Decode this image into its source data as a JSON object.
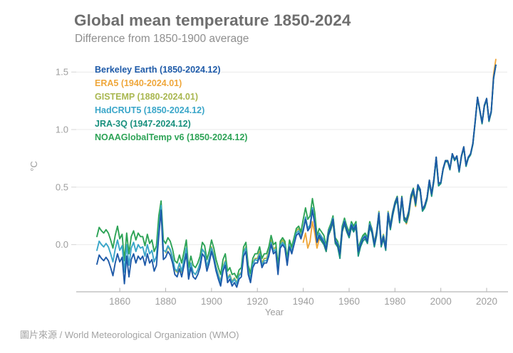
{
  "footer": {
    "source": "圖片來源 / World Meteorological Organization (WMO)"
  },
  "colors": {
    "grid": "#e9e9e9",
    "axis_line": "#b6b6b6",
    "tick": "#b6b6b6",
    "axis_text": "#9e9e9e",
    "title_text": "#6e6e6e",
    "subtitle_text": "#8e8e8e",
    "caption_text": "#a3a3a3"
  },
  "chart_data": {
    "type": "line",
    "title": "Global mean temperature 1850-2024",
    "subtitle": "Difference from 1850-1900 average",
    "xlabel": "Year",
    "ylabel": "°C",
    "grid": "horizontal",
    "legend_position": "top-left-inside",
    "xlim": [
      1841,
      2029
    ],
    "ylim": [
      -0.41,
      1.6
    ],
    "x_ticks": [
      1860,
      1880,
      1900,
      1920,
      1940,
      1960,
      1980,
      2000,
      2020
    ],
    "y_ticks": [
      {
        "value": 0.0,
        "label": "0.0"
      },
      {
        "value": 0.5,
        "label": "0.5"
      },
      {
        "value": 1.0,
        "label": "1.0"
      },
      {
        "value": 1.5,
        "label": "1.5"
      }
    ],
    "series": [
      {
        "id": "berkeley-earth",
        "name": "Berkeley Earth",
        "legend_label": "Berkeley Earth (1850-2024.12)",
        "color": "#1e5aa8",
        "start_year": 1850,
        "end_year": 2024,
        "values": [
          -0.17,
          -0.09,
          -0.12,
          -0.14,
          -0.11,
          -0.14,
          -0.2,
          -0.27,
          -0.16,
          -0.08,
          -0.15,
          -0.11,
          -0.34,
          -0.1,
          -0.28,
          -0.13,
          -0.08,
          -0.16,
          -0.1,
          -0.13,
          -0.1,
          -0.18,
          -0.08,
          -0.16,
          -0.13,
          -0.23,
          -0.18,
          0.08,
          0.3,
          -0.13,
          -0.11,
          -0.06,
          -0.09,
          -0.16,
          -0.26,
          -0.28,
          -0.21,
          -0.28,
          -0.18,
          -0.08,
          -0.3,
          -0.2,
          -0.28,
          -0.3,
          -0.26,
          -0.2,
          -0.08,
          -0.11,
          -0.23,
          -0.16,
          -0.06,
          -0.13,
          -0.23,
          -0.3,
          -0.36,
          -0.23,
          -0.18,
          -0.33,
          -0.3,
          -0.36,
          -0.33,
          -0.37,
          -0.3,
          -0.28,
          -0.1,
          -0.06,
          -0.26,
          -0.33,
          -0.2,
          -0.16,
          -0.16,
          -0.1,
          -0.2,
          -0.16,
          -0.16,
          -0.1,
          0.0,
          -0.08,
          -0.06,
          -0.26,
          -0.03,
          0.0,
          -0.03,
          -0.18,
          -0.02,
          -0.08,
          0.0,
          0.08,
          0.1,
          0.05,
          0.12,
          0.22,
          0.12,
          0.15,
          0.3,
          0.18,
          0.02,
          0.08,
          0.05,
          0.02,
          -0.04,
          0.1,
          0.15,
          0.22,
          0.03,
          0.0,
          -0.08,
          0.13,
          0.2,
          0.13,
          0.08,
          0.17,
          0.13,
          0.17,
          -0.06,
          0.0,
          0.05,
          0.07,
          0.03,
          0.17,
          0.12,
          0.0,
          0.1,
          0.27,
          0.0,
          0.07,
          -0.03,
          0.27,
          0.15,
          0.27,
          0.36,
          0.41,
          0.21,
          0.41,
          0.23,
          0.21,
          0.28,
          0.42,
          0.48,
          0.36,
          0.52,
          0.48,
          0.31,
          0.34,
          0.41,
          0.56,
          0.44,
          0.57,
          0.76,
          0.53,
          0.54,
          0.66,
          0.73,
          0.73,
          0.66,
          0.79,
          0.74,
          0.77,
          0.64,
          0.77,
          0.85,
          0.69,
          0.76,
          0.79,
          0.88,
          1.07,
          1.28,
          1.17,
          1.06,
          1.21,
          1.27,
          1.08,
          1.16,
          1.45,
          1.56
        ]
      },
      {
        "id": "era5",
        "name": "ERA5",
        "legend_label": "ERA5 (1940-2024.01)",
        "color": "#efa73b",
        "start_year": 1940,
        "end_year": 2024,
        "values": [
          0.02,
          0.1,
          -0.03,
          0.03,
          0.2,
          0.1,
          -0.03,
          0.05,
          0.03,
          0.0,
          -0.06,
          0.08,
          0.13,
          0.2,
          0.01,
          -0.02,
          -0.1,
          0.11,
          0.18,
          0.11,
          0.08,
          0.17,
          0.13,
          0.17,
          -0.06,
          0.0,
          0.05,
          0.07,
          0.03,
          0.17,
          0.12,
          0.0,
          0.1,
          0.27,
          0.0,
          0.07,
          -0.03,
          0.27,
          0.15,
          0.27,
          0.36,
          0.41,
          0.21,
          0.41,
          0.23,
          0.18,
          0.25,
          0.39,
          0.45,
          0.33,
          0.49,
          0.48,
          0.31,
          0.34,
          0.41,
          0.56,
          0.44,
          0.57,
          0.76,
          0.53,
          0.54,
          0.66,
          0.73,
          0.73,
          0.66,
          0.79,
          0.74,
          0.77,
          0.64,
          0.77,
          0.85,
          0.69,
          0.76,
          0.79,
          0.88,
          1.07,
          1.28,
          1.17,
          1.06,
          1.21,
          1.27,
          1.08,
          1.16,
          1.48,
          1.61
        ]
      },
      {
        "id": "gistemp",
        "name": "GISTEMP",
        "legend_label": "GISTEMP (1880-2024.01)",
        "color": "#a9b750",
        "start_year": 1880,
        "end_year": 2024,
        "values": [
          -0.07,
          -0.02,
          -0.05,
          -0.12,
          -0.22,
          -0.24,
          -0.17,
          -0.24,
          -0.14,
          -0.04,
          -0.26,
          -0.16,
          -0.24,
          -0.26,
          -0.22,
          -0.16,
          -0.04,
          -0.07,
          -0.19,
          -0.12,
          -0.02,
          -0.09,
          -0.19,
          -0.26,
          -0.32,
          -0.19,
          -0.14,
          -0.29,
          -0.26,
          -0.32,
          -0.29,
          -0.33,
          -0.26,
          -0.24,
          -0.06,
          -0.02,
          -0.22,
          -0.29,
          -0.16,
          -0.12,
          -0.12,
          -0.06,
          -0.16,
          -0.12,
          -0.12,
          -0.06,
          0.04,
          -0.04,
          -0.02,
          -0.22,
          0.01,
          0.04,
          0.01,
          -0.14,
          0.02,
          -0.04,
          0.04,
          0.12,
          0.14,
          0.09,
          0.14,
          0.24,
          0.14,
          0.17,
          0.32,
          0.2,
          0.04,
          0.1,
          0.07,
          0.04,
          -0.02,
          0.12,
          0.17,
          0.24,
          0.05,
          0.02,
          -0.06,
          0.15,
          0.22,
          0.15,
          0.1,
          0.19,
          0.15,
          0.19,
          -0.04,
          0.02,
          0.07,
          0.09,
          0.05,
          0.19,
          0.14,
          0.02,
          0.12,
          0.29,
          0.02,
          0.09,
          -0.01,
          0.29,
          0.17,
          0.29,
          0.36,
          0.41,
          0.21,
          0.41,
          0.23,
          0.21,
          0.28,
          0.42,
          0.48,
          0.36,
          0.52,
          0.48,
          0.31,
          0.34,
          0.41,
          0.56,
          0.44,
          0.57,
          0.76,
          0.53,
          0.54,
          0.66,
          0.73,
          0.73,
          0.66,
          0.79,
          0.74,
          0.77,
          0.64,
          0.77,
          0.85,
          0.69,
          0.76,
          0.79,
          0.88,
          1.07,
          1.28,
          1.17,
          1.06,
          1.21,
          1.27,
          1.08,
          1.16,
          1.45,
          1.56
        ]
      },
      {
        "id": "hadcrut5",
        "name": "HadCRUT5",
        "legend_label": "HadCRUT5 (1850-2024.12)",
        "color": "#3aa6c9",
        "start_year": 1850,
        "end_year": 2024,
        "values": [
          -0.05,
          0.03,
          0.0,
          -0.02,
          0.01,
          -0.02,
          -0.08,
          -0.15,
          -0.04,
          0.04,
          -0.05,
          -0.01,
          -0.24,
          0.0,
          -0.18,
          -0.03,
          0.02,
          -0.06,
          0.0,
          -0.03,
          -0.02,
          -0.1,
          0.0,
          -0.08,
          -0.05,
          -0.15,
          -0.1,
          0.14,
          0.34,
          -0.05,
          -0.06,
          -0.01,
          -0.04,
          -0.11,
          -0.21,
          -0.23,
          -0.16,
          -0.23,
          -0.13,
          -0.03,
          -0.26,
          -0.16,
          -0.24,
          -0.26,
          -0.22,
          -0.16,
          -0.04,
          -0.07,
          -0.19,
          -0.12,
          -0.03,
          -0.1,
          -0.2,
          -0.27,
          -0.33,
          -0.2,
          -0.15,
          -0.3,
          -0.27,
          -0.33,
          -0.3,
          -0.34,
          -0.27,
          -0.25,
          -0.07,
          -0.03,
          -0.23,
          -0.3,
          -0.17,
          -0.13,
          -0.14,
          -0.08,
          -0.18,
          -0.14,
          -0.14,
          -0.08,
          0.02,
          -0.06,
          -0.04,
          -0.24,
          -0.01,
          0.02,
          -0.01,
          -0.16,
          0.0,
          -0.06,
          0.02,
          0.1,
          0.12,
          0.07,
          0.14,
          0.24,
          0.14,
          0.17,
          0.32,
          0.2,
          0.04,
          0.1,
          0.07,
          0.04,
          -0.03,
          0.11,
          0.16,
          0.23,
          0.04,
          0.01,
          -0.07,
          0.14,
          0.21,
          0.14,
          0.09,
          0.18,
          0.14,
          0.18,
          -0.05,
          0.01,
          0.06,
          0.08,
          0.04,
          0.18,
          0.13,
          0.01,
          0.11,
          0.28,
          0.01,
          0.08,
          -0.02,
          0.28,
          0.16,
          0.28,
          0.36,
          0.41,
          0.21,
          0.41,
          0.23,
          0.21,
          0.28,
          0.42,
          0.48,
          0.36,
          0.52,
          0.48,
          0.31,
          0.34,
          0.41,
          0.56,
          0.44,
          0.57,
          0.76,
          0.53,
          0.54,
          0.66,
          0.73,
          0.73,
          0.66,
          0.79,
          0.74,
          0.77,
          0.64,
          0.77,
          0.85,
          0.69,
          0.76,
          0.79,
          0.88,
          1.07,
          1.28,
          1.17,
          1.06,
          1.21,
          1.27,
          1.08,
          1.16,
          1.45,
          1.56
        ]
      },
      {
        "id": "jra-3q",
        "name": "JRA-3Q",
        "legend_label": "JRA-3Q (1947-2024.12)",
        "color": "#18907d",
        "start_year": 1947,
        "end_year": 2024,
        "values": [
          0.06,
          0.03,
          0.0,
          -0.06,
          0.08,
          0.13,
          0.2,
          0.01,
          -0.02,
          -0.12,
          0.11,
          0.18,
          0.11,
          0.06,
          0.15,
          0.11,
          0.15,
          -0.1,
          -0.02,
          0.03,
          0.05,
          0.01,
          0.15,
          0.1,
          -0.02,
          0.08,
          0.25,
          -0.02,
          0.05,
          -0.05,
          0.25,
          0.13,
          0.25,
          0.34,
          0.39,
          0.19,
          0.39,
          0.21,
          0.19,
          0.26,
          0.4,
          0.46,
          0.34,
          0.5,
          0.46,
          0.29,
          0.32,
          0.39,
          0.54,
          0.42,
          0.55,
          0.74,
          0.51,
          0.53,
          0.65,
          0.72,
          0.72,
          0.65,
          0.78,
          0.73,
          0.76,
          0.63,
          0.76,
          0.84,
          0.68,
          0.75,
          0.78,
          0.87,
          1.06,
          1.27,
          1.16,
          1.05,
          1.2,
          1.26,
          1.07,
          1.15,
          1.44,
          1.56
        ]
      },
      {
        "id": "noaa-globaltemp-v6",
        "name": "NOAAGlobalTemp v6",
        "legend_label": "NOAAGlobalTemp v6 (1850-2024.12)",
        "color": "#2da356",
        "start_year": 1850,
        "end_year": 2024,
        "values": [
          0.07,
          0.15,
          0.12,
          0.1,
          0.13,
          0.1,
          0.04,
          -0.03,
          0.08,
          0.16,
          0.05,
          0.09,
          -0.14,
          0.1,
          -0.08,
          0.07,
          0.12,
          0.04,
          0.1,
          0.07,
          0.07,
          -0.01,
          0.09,
          0.01,
          0.04,
          -0.06,
          -0.01,
          0.25,
          0.38,
          0.04,
          0.01,
          0.06,
          0.03,
          -0.04,
          -0.14,
          -0.16,
          -0.09,
          -0.16,
          -0.06,
          0.04,
          -0.2,
          -0.1,
          -0.18,
          -0.2,
          -0.16,
          -0.1,
          0.02,
          -0.01,
          -0.13,
          -0.06,
          0.04,
          -0.03,
          -0.13,
          -0.2,
          -0.26,
          -0.13,
          -0.08,
          -0.23,
          -0.2,
          -0.26,
          -0.25,
          -0.29,
          -0.22,
          -0.2,
          -0.02,
          0.02,
          -0.18,
          -0.25,
          -0.12,
          -0.08,
          -0.08,
          -0.02,
          -0.12,
          -0.08,
          -0.08,
          -0.02,
          0.08,
          0.0,
          0.02,
          -0.18,
          0.03,
          0.06,
          0.03,
          -0.12,
          0.04,
          -0.02,
          0.06,
          0.14,
          0.16,
          0.11,
          0.22,
          0.32,
          0.22,
          0.25,
          0.4,
          0.28,
          0.08,
          0.14,
          0.11,
          0.08,
          -0.01,
          0.13,
          0.18,
          0.25,
          0.06,
          0.03,
          -0.05,
          0.16,
          0.23,
          0.16,
          0.11,
          0.2,
          0.16,
          0.2,
          -0.03,
          0.03,
          0.08,
          0.1,
          0.06,
          0.2,
          0.13,
          0.01,
          0.11,
          0.28,
          0.01,
          0.08,
          -0.02,
          0.28,
          0.16,
          0.28,
          0.37,
          0.42,
          0.22,
          0.42,
          0.24,
          0.22,
          0.29,
          0.43,
          0.49,
          0.37,
          0.52,
          0.48,
          0.31,
          0.34,
          0.41,
          0.56,
          0.44,
          0.57,
          0.76,
          0.53,
          0.54,
          0.66,
          0.73,
          0.73,
          0.66,
          0.79,
          0.74,
          0.77,
          0.64,
          0.77,
          0.85,
          0.69,
          0.76,
          0.79,
          0.88,
          1.07,
          1.28,
          1.17,
          1.06,
          1.21,
          1.27,
          1.08,
          1.16,
          1.45,
          1.56
        ]
      }
    ]
  }
}
